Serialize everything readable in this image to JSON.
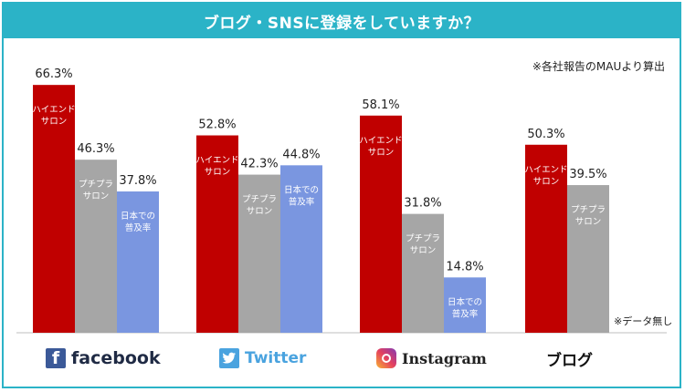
{
  "title": "ブログ・SNSに登録をしていますか？",
  "note": "※各社報告のMAUより算出",
  "no_data_note": "※データ無し",
  "colors": {
    "high_end": "#c00000",
    "puchipura": "#a6a6a6",
    "japan": "#7a96e0",
    "banner": "#2bb3c7"
  },
  "legend_labels": {
    "high_end": "ハイエンド\nサロン",
    "puchipura": "プチプラ\nサロン",
    "japan": "日本での\n普及率"
  },
  "platforms": {
    "facebook": "facebook",
    "twitter": "Twitter",
    "instagram": "Instagram",
    "blog": "ブログ"
  },
  "chart_data": {
    "type": "bar",
    "title": "ブログ・SNSに登録をしていますか？",
    "categories": [
      "facebook",
      "Twitter",
      "Instagram",
      "ブログ"
    ],
    "series": [
      {
        "name": "ハイエンドサロン",
        "values": [
          66.3,
          52.8,
          58.1,
          50.3
        ]
      },
      {
        "name": "プチプラサロン",
        "values": [
          46.3,
          42.3,
          31.8,
          39.5
        ]
      },
      {
        "name": "日本での普及率",
        "values": [
          37.8,
          44.8,
          14.8,
          null
        ]
      }
    ],
    "value_labels": [
      [
        "66.3%",
        "52.8%",
        "58.1%",
        "50.3%"
      ],
      [
        "46.3%",
        "42.3%",
        "31.8%",
        "39.5%"
      ],
      [
        "37.8%",
        "44.8%",
        "14.8%",
        ""
      ]
    ],
    "ylim": [
      0,
      100
    ],
    "grid": false,
    "legend": "in-bar labels"
  }
}
